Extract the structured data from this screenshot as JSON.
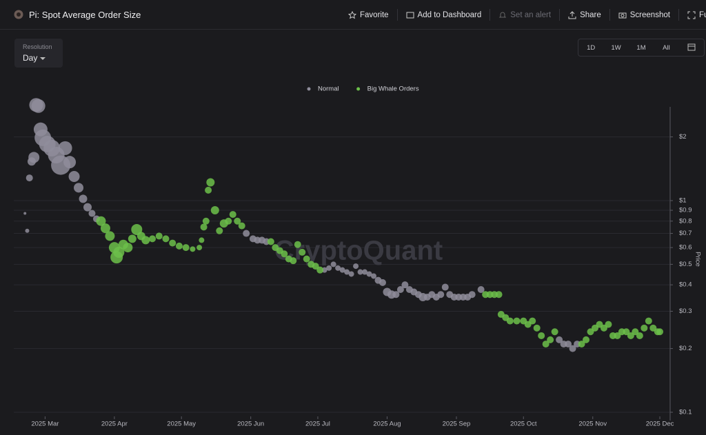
{
  "header": {
    "title": "Pi: Spot Average Order Size",
    "actions": [
      "Favorite",
      "Add to Dashboard",
      "Set an alert",
      "Share",
      "Screenshot",
      "Full"
    ]
  },
  "resolution": {
    "label": "Resolution",
    "value": "Day"
  },
  "range_buttons": [
    "1D",
    "1W",
    "1M",
    "All"
  ],
  "watermark": "CryptoQuant",
  "chart_data": {
    "type": "scatter",
    "y_label": "Price",
    "log_scale": true,
    "grid": true,
    "legend": "top",
    "xlim": [
      "2025-02-15",
      "2025-12-05"
    ],
    "xticks": [
      {
        "value": "2025-03-01",
        "label": "2025 Mar"
      },
      {
        "value": "2025-04-01",
        "label": "2025 Apr"
      },
      {
        "value": "2025-05-01",
        "label": "2025 May"
      },
      {
        "value": "2025-06-01",
        "label": "2025 Jun"
      },
      {
        "value": "2025-07-01",
        "label": "2025 Jul"
      },
      {
        "value": "2025-08-01",
        "label": "2025 Aug"
      },
      {
        "value": "2025-09-01",
        "label": "2025 Sep"
      },
      {
        "value": "2025-10-01",
        "label": "2025 Oct"
      },
      {
        "value": "2025-11-01",
        "label": "2025 Nov"
      },
      {
        "value": "2025-12-01",
        "label": "2025 Dec"
      }
    ],
    "ylim": [
      0.1,
      3
    ],
    "yticks": [
      {
        "value": 2,
        "label": "$2"
      },
      {
        "value": 1,
        "label": "$1"
      },
      {
        "value": 0.9,
        "label": "$0.9"
      },
      {
        "value": 0.8,
        "label": "$0.8"
      },
      {
        "value": 0.7,
        "label": "$0.7"
      },
      {
        "value": 0.6,
        "label": "$0.6"
      },
      {
        "value": 0.5,
        "label": "$0.5"
      },
      {
        "value": 0.4,
        "label": "$0.4"
      },
      {
        "value": 0.3,
        "label": "$0.3"
      },
      {
        "value": 0.2,
        "label": "$0.2"
      },
      {
        "value": 0.1,
        "label": "$0.1"
      }
    ],
    "series": [
      {
        "name": "Normal",
        "color": "#8f8d9b",
        "x": [
          "2025-02-20",
          "2025-02-21",
          "2025-02-22",
          "2025-02-23",
          "2025-02-24",
          "2025-02-25",
          "2025-02-26",
          "2025-02-27",
          "2025-02-28",
          "2025-03-02",
          "2025-03-04",
          "2025-03-06",
          "2025-03-08",
          "2025-03-10",
          "2025-03-12",
          "2025-03-14",
          "2025-03-16",
          "2025-03-18",
          "2025-03-20",
          "2025-03-22",
          "2025-03-24",
          "2025-05-30",
          "2025-06-02",
          "2025-06-04",
          "2025-06-06",
          "2025-06-08",
          "2025-07-04",
          "2025-07-06",
          "2025-07-08",
          "2025-07-10",
          "2025-07-12",
          "2025-07-14",
          "2025-07-16",
          "2025-07-18",
          "2025-07-20",
          "2025-07-22",
          "2025-07-24",
          "2025-07-26",
          "2025-07-28",
          "2025-07-30",
          "2025-08-01",
          "2025-08-03",
          "2025-08-05",
          "2025-08-07",
          "2025-08-09",
          "2025-08-11",
          "2025-08-13",
          "2025-08-15",
          "2025-08-17",
          "2025-08-19",
          "2025-08-21",
          "2025-08-23",
          "2025-08-25",
          "2025-08-27",
          "2025-08-29",
          "2025-08-31",
          "2025-09-02",
          "2025-09-04",
          "2025-09-06",
          "2025-09-08",
          "2025-09-12",
          "2025-10-17",
          "2025-10-19",
          "2025-10-21",
          "2025-10-23",
          "2025-10-25"
        ],
        "values": [
          0.87,
          0.72,
          1.28,
          1.53,
          1.6,
          2.83,
          2.8,
          2.17,
          1.98,
          1.85,
          1.77,
          1.64,
          1.47,
          1.77,
          1.52,
          1.3,
          1.15,
          1.02,
          0.93,
          0.87,
          0.82,
          0.7,
          0.66,
          0.65,
          0.65,
          0.64,
          0.47,
          0.48,
          0.5,
          0.48,
          0.47,
          0.46,
          0.45,
          0.49,
          0.46,
          0.46,
          0.45,
          0.44,
          0.42,
          0.41,
          0.37,
          0.36,
          0.36,
          0.38,
          0.4,
          0.38,
          0.37,
          0.36,
          0.35,
          0.35,
          0.36,
          0.35,
          0.36,
          0.39,
          0.36,
          0.35,
          0.35,
          0.35,
          0.35,
          0.36,
          0.38,
          0.22,
          0.21,
          0.21,
          0.2,
          0.21
        ],
        "sizes": [
          2,
          3,
          5,
          6,
          8,
          10,
          10,
          10,
          12,
          12,
          12,
          12,
          14,
          10,
          9,
          8,
          7,
          6,
          6,
          5,
          5,
          5,
          5,
          5,
          5,
          5,
          4,
          4,
          4,
          4,
          4,
          4,
          4,
          4,
          4,
          4,
          4,
          4,
          5,
          5,
          6,
          6,
          5,
          5,
          5,
          5,
          5,
          5,
          6,
          5,
          5,
          5,
          5,
          5,
          5,
          5,
          5,
          5,
          5,
          5,
          5,
          5,
          5,
          5,
          5,
          5
        ]
      },
      {
        "name": "Big Whale Orders",
        "color": "#6cc04a",
        "x": [
          "2025-03-26",
          "2025-03-28",
          "2025-03-30",
          "2025-04-01",
          "2025-04-02",
          "2025-04-03",
          "2025-04-05",
          "2025-04-07",
          "2025-04-09",
          "2025-04-11",
          "2025-04-13",
          "2025-04-15",
          "2025-04-18",
          "2025-04-21",
          "2025-04-24",
          "2025-04-27",
          "2025-04-30",
          "2025-05-03",
          "2025-05-06",
          "2025-05-09",
          "2025-05-10",
          "2025-05-11",
          "2025-05-12",
          "2025-05-13",
          "2025-05-14",
          "2025-05-16",
          "2025-05-18",
          "2025-05-20",
          "2025-05-22",
          "2025-05-24",
          "2025-05-26",
          "2025-05-28",
          "2025-06-10",
          "2025-06-12",
          "2025-06-14",
          "2025-06-16",
          "2025-06-18",
          "2025-06-20",
          "2025-06-22",
          "2025-06-24",
          "2025-06-26",
          "2025-06-28",
          "2025-06-30",
          "2025-07-02",
          "2025-09-14",
          "2025-09-16",
          "2025-09-18",
          "2025-09-20",
          "2025-09-21",
          "2025-09-23",
          "2025-09-25",
          "2025-09-28",
          "2025-10-01",
          "2025-10-03",
          "2025-10-05",
          "2025-10-07",
          "2025-10-09",
          "2025-10-11",
          "2025-10-13",
          "2025-10-15",
          "2025-10-27",
          "2025-10-29",
          "2025-10-31",
          "2025-11-02",
          "2025-11-04",
          "2025-11-06",
          "2025-11-08",
          "2025-11-10",
          "2025-11-12",
          "2025-11-14",
          "2025-11-16",
          "2025-11-18",
          "2025-11-20",
          "2025-11-22",
          "2025-11-24",
          "2025-11-26",
          "2025-11-28",
          "2025-11-30",
          "2025-12-01"
        ],
        "values": [
          0.8,
          0.74,
          0.68,
          0.6,
          0.54,
          0.57,
          0.62,
          0.6,
          0.66,
          0.73,
          0.68,
          0.65,
          0.66,
          0.68,
          0.66,
          0.63,
          0.61,
          0.6,
          0.59,
          0.6,
          0.65,
          0.75,
          0.8,
          1.12,
          1.22,
          0.9,
          0.72,
          0.78,
          0.8,
          0.86,
          0.8,
          0.76,
          0.64,
          0.6,
          0.58,
          0.56,
          0.53,
          0.52,
          0.62,
          0.57,
          0.53,
          0.5,
          0.49,
          0.47,
          0.36,
          0.36,
          0.36,
          0.36,
          0.29,
          0.28,
          0.27,
          0.27,
          0.27,
          0.26,
          0.27,
          0.25,
          0.23,
          0.21,
          0.22,
          0.24,
          0.21,
          0.22,
          0.24,
          0.25,
          0.26,
          0.25,
          0.26,
          0.23,
          0.23,
          0.24,
          0.24,
          0.23,
          0.24,
          0.23,
          0.25,
          0.27,
          0.25,
          0.24,
          0.24
        ],
        "sizes": [
          7,
          7,
          7,
          8,
          9,
          8,
          7,
          7,
          6,
          8,
          6,
          6,
          5,
          5,
          5,
          5,
          5,
          5,
          4,
          4,
          4,
          5,
          5,
          5,
          6,
          6,
          5,
          6,
          5,
          5,
          5,
          5,
          5,
          5,
          5,
          5,
          5,
          5,
          5,
          5,
          5,
          5,
          5,
          5,
          5,
          5,
          5,
          5,
          5,
          5,
          5,
          5,
          5,
          5,
          5,
          5,
          5,
          5,
          5,
          5,
          5,
          5,
          5,
          5,
          5,
          5,
          5,
          5,
          5,
          5,
          5,
          5,
          5,
          5,
          5,
          5,
          5,
          5,
          5
        ]
      }
    ]
  }
}
